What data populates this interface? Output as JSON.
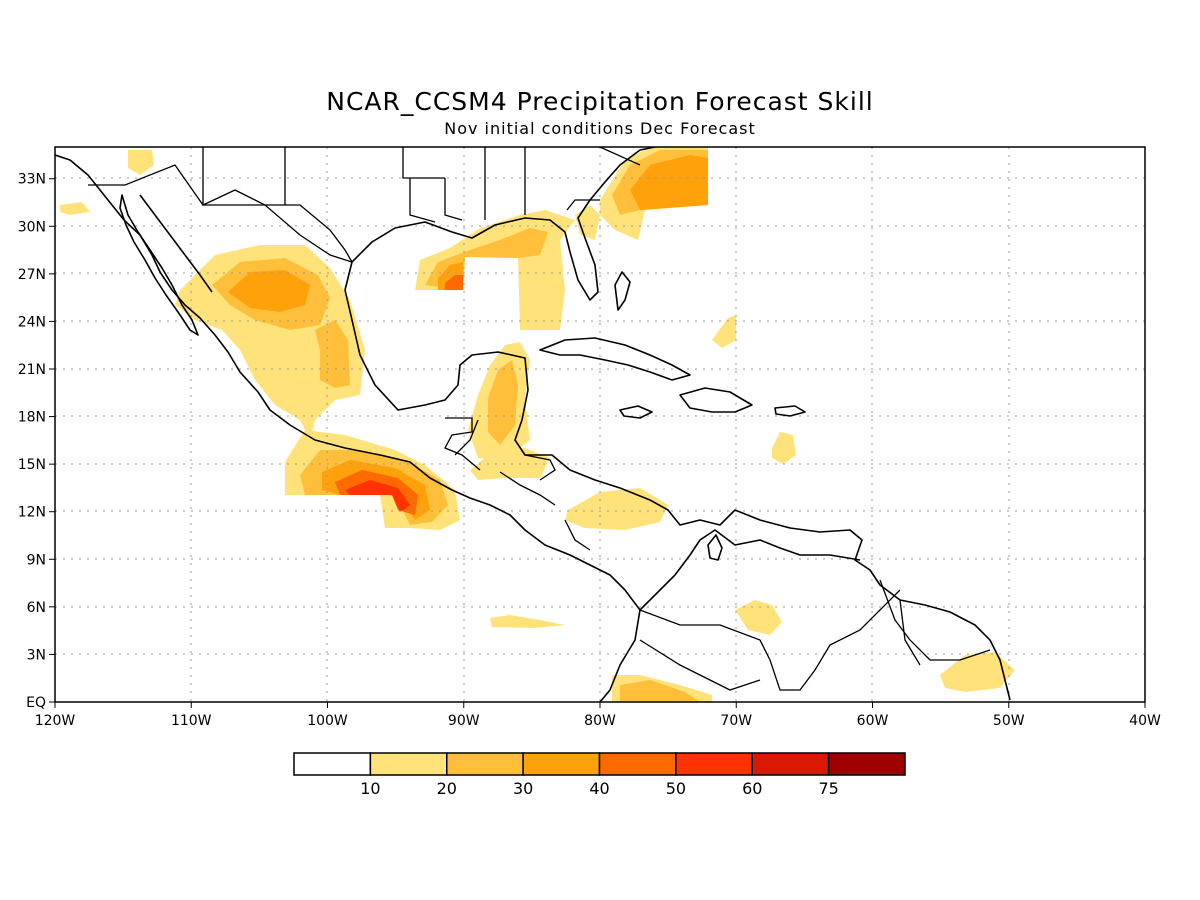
{
  "title": "NCAR_CCSM4 Precipitation Forecast Skill",
  "subtitle": "Nov initial conditions  Dec Forecast",
  "map": {
    "lon_range": [
      -120,
      -40
    ],
    "lat_range": [
      0,
      35
    ],
    "lon_ticks": [
      {
        "value": -120,
        "label": "120W"
      },
      {
        "value": -110,
        "label": "110W"
      },
      {
        "value": -100,
        "label": "100W"
      },
      {
        "value": -90,
        "label": "90W"
      },
      {
        "value": -80,
        "label": "80W"
      },
      {
        "value": -70,
        "label": "70W"
      },
      {
        "value": -60,
        "label": "60W"
      },
      {
        "value": -50,
        "label": "50W"
      },
      {
        "value": -40,
        "label": "40W"
      }
    ],
    "lat_ticks": [
      {
        "value": 0,
        "label": "EQ"
      },
      {
        "value": 3,
        "label": "3N"
      },
      {
        "value": 6,
        "label": "6N"
      },
      {
        "value": 9,
        "label": "9N"
      },
      {
        "value": 12,
        "label": "12N"
      },
      {
        "value": 15,
        "label": "15N"
      },
      {
        "value": 18,
        "label": "18N"
      },
      {
        "value": 21,
        "label": "21N"
      },
      {
        "value": 24,
        "label": "24N"
      },
      {
        "value": 27,
        "label": "27N"
      },
      {
        "value": 30,
        "label": "30N"
      },
      {
        "value": 33,
        "label": "33N"
      }
    ],
    "grid": true
  },
  "colorbar": {
    "colors": [
      "#ffffff",
      "#ffe37a",
      "#ffbf3a",
      "#ffa10a",
      "#ff6a00",
      "#ff3300",
      "#d91a00",
      "#a00000"
    ],
    "labels": [
      "10",
      "20",
      "30",
      "40",
      "50",
      "60",
      "75"
    ]
  }
}
